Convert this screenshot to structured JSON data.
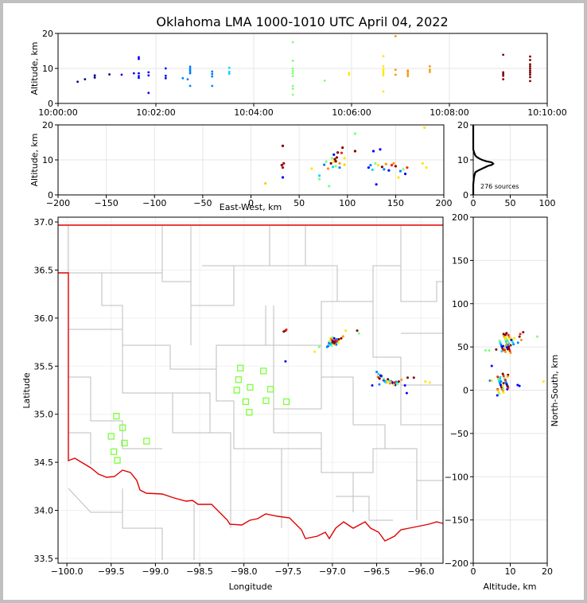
{
  "chart_data": {
    "title": "Oklahoma LMA 1000-1010 UTC April 04, 2022",
    "time_height": {
      "type": "scatter",
      "ylabel": "Altitude, km",
      "xlim_minutes": [
        0,
        10
      ],
      "ylim": [
        0,
        20
      ],
      "xticks": [
        "10:00:00",
        "10:02:00",
        "10:04:00",
        "10:06:00",
        "10:08:00",
        "10:10:00"
      ],
      "yticks": [
        "0",
        "10",
        "20"
      ],
      "color_by_time": [
        "#00007f",
        "#0000ff",
        "#0080ff",
        "#00d8ff",
        "#7dff7a",
        "#ffe600",
        "#ff9400",
        "#ff1d00",
        "#7f0000"
      ],
      "points": [
        [
          0.4,
          6.2
        ],
        [
          0.55,
          6.9
        ],
        [
          0.75,
          7.4
        ],
        [
          0.75,
          8.0
        ],
        [
          1.05,
          8.3
        ],
        [
          1.3,
          8.2
        ],
        [
          1.55,
          8.6
        ],
        [
          1.65,
          7.3
        ],
        [
          1.65,
          7.8
        ],
        [
          1.65,
          8.6
        ],
        [
          1.65,
          12.7
        ],
        [
          1.65,
          13.2
        ],
        [
          1.85,
          8.0
        ],
        [
          1.85,
          8.9
        ],
        [
          1.85,
          3.0
        ],
        [
          2.2,
          7.2
        ],
        [
          2.2,
          7.9
        ],
        [
          2.2,
          10.0
        ],
        [
          2.55,
          7.2
        ],
        [
          2.65,
          6.9
        ],
        [
          2.7,
          8.6
        ],
        [
          2.7,
          9.0
        ],
        [
          2.7,
          9.5
        ],
        [
          2.7,
          10.0
        ],
        [
          2.7,
          10.5
        ],
        [
          2.7,
          5.0
        ],
        [
          3.15,
          7.7
        ],
        [
          3.15,
          8.4
        ],
        [
          3.15,
          9.1
        ],
        [
          3.15,
          5.0
        ],
        [
          3.5,
          8.5
        ],
        [
          3.5,
          9.0
        ],
        [
          3.5,
          10.2
        ],
        [
          4.8,
          7.8
        ],
        [
          4.8,
          8.6
        ],
        [
          4.8,
          9.3
        ],
        [
          4.8,
          10.0
        ],
        [
          4.8,
          12.2
        ],
        [
          4.8,
          5.0
        ],
        [
          4.8,
          4.2
        ],
        [
          4.8,
          2.5
        ],
        [
          4.8,
          17.5
        ],
        [
          5.45,
          6.5
        ],
        [
          5.95,
          8.2
        ],
        [
          5.95,
          8.7
        ],
        [
          6.65,
          8.0
        ],
        [
          6.65,
          8.6
        ],
        [
          6.65,
          9.2
        ],
        [
          6.65,
          9.8
        ],
        [
          6.65,
          10.6
        ],
        [
          6.65,
          13.5
        ],
        [
          6.65,
          3.4
        ],
        [
          6.9,
          8.2
        ],
        [
          6.9,
          9.6
        ],
        [
          6.9,
          19.2
        ],
        [
          7.15,
          7.8
        ],
        [
          7.15,
          8.4
        ],
        [
          7.15,
          9.0
        ],
        [
          7.15,
          9.4
        ],
        [
          7.6,
          9.0
        ],
        [
          7.6,
          9.6
        ],
        [
          7.6,
          10.6
        ],
        [
          9.1,
          7.9
        ],
        [
          9.1,
          8.4
        ],
        [
          9.1,
          8.9
        ],
        [
          9.1,
          13.9
        ],
        [
          9.1,
          6.9
        ],
        [
          9.65,
          6.4
        ],
        [
          9.65,
          7.5
        ],
        [
          9.65,
          8.2
        ],
        [
          9.65,
          8.8
        ],
        [
          9.65,
          9.4
        ],
        [
          9.65,
          10.0
        ],
        [
          9.65,
          10.6
        ],
        [
          9.65,
          11.2
        ],
        [
          9.65,
          12.4
        ],
        [
          9.65,
          13.4
        ]
      ]
    },
    "ew_height": {
      "type": "scatter",
      "xlabel": "East-West, km",
      "ylabel": "Altitude, km",
      "xlim": [
        -200,
        200
      ],
      "ylim": [
        0,
        20
      ],
      "xticks": [
        "−200",
        "−150",
        "−100",
        "−50",
        "0",
        "50",
        "100",
        "150",
        "200"
      ],
      "yticks": [
        "0",
        "10",
        "20"
      ],
      "points": [
        [
          32,
          8.5,
          "#7f0000"
        ],
        [
          33,
          7.8,
          "#b00000"
        ],
        [
          33,
          14,
          "#7f0000"
        ],
        [
          34,
          9,
          "#b00000"
        ],
        [
          15,
          3.3,
          "#ffcc00"
        ],
        [
          33,
          5,
          "#0000ff"
        ],
        [
          63,
          7.5,
          "#ffe600"
        ],
        [
          71,
          4.5,
          "#7dff7a"
        ],
        [
          71,
          5.5,
          "#00d8ff"
        ],
        [
          76,
          8.6,
          "#0080ff"
        ],
        [
          78,
          9.5,
          "#7dff7a"
        ],
        [
          80,
          7.5,
          "#ff9400"
        ],
        [
          81,
          2.5,
          "#7dff7a"
        ],
        [
          83,
          9.0,
          "#7f0000"
        ],
        [
          84,
          10.5,
          "#7dff7a"
        ],
        [
          85,
          8.0,
          "#00d8ff"
        ],
        [
          86,
          9.5,
          "#ffe600"
        ],
        [
          86,
          11.5,
          "#0000ff"
        ],
        [
          87,
          10.2,
          "#7f0000"
        ],
        [
          88,
          9.6,
          "#7f0000"
        ],
        [
          88,
          8.2,
          "#7dff7a"
        ],
        [
          89,
          10.7,
          "#7f0000"
        ],
        [
          90,
          12.1,
          "#7f0000"
        ],
        [
          92,
          9.0,
          "#ff9400"
        ],
        [
          92,
          7.8,
          "#0080ff"
        ],
        [
          94,
          12,
          "#ff1d00"
        ],
        [
          95,
          13.5,
          "#7f0000"
        ],
        [
          97,
          10.5,
          "#ffe600"
        ],
        [
          97,
          8.6,
          "#ffcc00"
        ],
        [
          108,
          17.5,
          "#7dff7a"
        ],
        [
          108,
          12.5,
          "#7f0000"
        ],
        [
          122,
          7.8,
          "#0000ff"
        ],
        [
          124,
          8.5,
          "#0080ff"
        ],
        [
          126,
          7.2,
          "#00d8ff"
        ],
        [
          127,
          12.5,
          "#0000ff"
        ],
        [
          129,
          9.0,
          "#7dff7a"
        ],
        [
          130,
          3.0,
          "#0000ff"
        ],
        [
          132,
          8.5,
          "#ffe600"
        ],
        [
          134,
          13,
          "#0000ff"
        ],
        [
          136,
          8.0,
          "#7f0000"
        ],
        [
          138,
          7.3,
          "#0080ff"
        ],
        [
          140,
          8.8,
          "#ff9400"
        ],
        [
          143,
          7.0,
          "#0000ff"
        ],
        [
          146,
          8.5,
          "#ff1d00"
        ],
        [
          148,
          9.0,
          "#ff9400"
        ],
        [
          150,
          8.2,
          "#7f0000"
        ],
        [
          153,
          5.0,
          "#ffe600"
        ],
        [
          155,
          6.8,
          "#0080ff"
        ],
        [
          158,
          7.3,
          "#7dff7a"
        ],
        [
          160,
          6.0,
          "#0000ff"
        ],
        [
          162,
          7.8,
          "#ff1d00"
        ],
        [
          178,
          9.0,
          "#ffe600"
        ],
        [
          180,
          19.2,
          "#ffe600"
        ],
        [
          182,
          7.8,
          "#ffe600"
        ]
      ]
    },
    "histogram": {
      "type": "line",
      "xlim": [
        0,
        100
      ],
      "ylim": [
        0,
        20
      ],
      "xticks": [
        "0",
        "50",
        "100"
      ],
      "yticks": [
        "0",
        "10",
        "20"
      ],
      "annotation": "276 sources",
      "profile": [
        [
          0,
          0
        ],
        [
          0,
          3
        ],
        [
          1,
          5
        ],
        [
          2,
          6
        ],
        [
          3,
          6.5
        ],
        [
          7,
          7
        ],
        [
          12,
          7.5
        ],
        [
          16,
          7.9
        ],
        [
          20,
          8.3
        ],
        [
          25,
          8.6
        ],
        [
          27,
          8.9
        ],
        [
          25,
          9.3
        ],
        [
          18,
          9.6
        ],
        [
          12,
          10.0
        ],
        [
          8,
          10.4
        ],
        [
          5,
          10.8
        ],
        [
          3,
          11.2
        ],
        [
          2,
          11.6
        ],
        [
          1,
          12.2
        ],
        [
          0,
          13
        ],
        [
          0,
          20
        ]
      ]
    },
    "map": {
      "type": "scatter",
      "xlabel": "Longitude",
      "ylabel": "Latitude",
      "xlim": [
        -100.1,
        -95.75
      ],
      "ylim": [
        33.45,
        37.05
      ],
      "xticks": [
        "−100.0",
        "−99.5",
        "−99.0",
        "−98.5",
        "−98.0",
        "−97.5",
        "−97.0",
        "−96.5",
        "−96.0"
      ],
      "yticks": [
        "33.5",
        "34.0",
        "34.5",
        "35.0",
        "35.5",
        "36.0",
        "36.5",
        "37.0"
      ],
      "stations": [
        [
          -99.44,
          34.98
        ],
        [
          -99.37,
          34.86
        ],
        [
          -99.5,
          34.77
        ],
        [
          -99.35,
          34.7
        ],
        [
          -99.47,
          34.61
        ],
        [
          -99.43,
          34.52
        ],
        [
          -99.1,
          34.72
        ],
        [
          -98.04,
          35.48
        ],
        [
          -97.78,
          35.45
        ],
        [
          -98.06,
          35.36
        ],
        [
          -97.93,
          35.28
        ],
        [
          -98.08,
          35.25
        ],
        [
          -97.7,
          35.26
        ],
        [
          -97.98,
          35.13
        ],
        [
          -97.75,
          35.14
        ],
        [
          -97.52,
          35.13
        ],
        [
          -97.94,
          35.02
        ]
      ],
      "points": [
        [
          -97.53,
          35.87,
          "#7f0000"
        ],
        [
          -97.52,
          35.88,
          "#ff1d00"
        ],
        [
          -97.55,
          35.86,
          "#7f0000"
        ],
        [
          -97.53,
          35.55,
          "#0000ff"
        ],
        [
          -97.2,
          35.65,
          "#ffe600"
        ],
        [
          -97.15,
          35.7,
          "#7dff7a"
        ],
        [
          -97.06,
          35.7,
          "#0080ff"
        ],
        [
          -97.04,
          35.72,
          "#00d8ff"
        ],
        [
          -97.0,
          35.75,
          "#7f0000"
        ],
        [
          -96.98,
          35.74,
          "#7f0000"
        ],
        [
          -96.95,
          35.76,
          "#ff1d00"
        ],
        [
          -96.93,
          35.78,
          "#7f0000"
        ],
        [
          -96.9,
          35.79,
          "#7f0000"
        ],
        [
          -96.88,
          35.81,
          "#ff9400"
        ],
        [
          -96.85,
          35.87,
          "#ffe600"
        ],
        [
          -96.72,
          35.87,
          "#7f0000"
        ],
        [
          -96.7,
          35.84,
          "#7dff7a"
        ],
        [
          -97.0,
          35.8,
          "#7dff7a"
        ],
        [
          -96.98,
          35.79,
          "#0000ff"
        ],
        [
          -96.95,
          35.78,
          "#0080ff"
        ],
        [
          -96.5,
          35.44,
          "#0080ff"
        ],
        [
          -96.48,
          35.42,
          "#00d8ff"
        ],
        [
          -96.45,
          35.4,
          "#0000ff"
        ],
        [
          -96.42,
          35.37,
          "#7dff7a"
        ],
        [
          -96.38,
          35.33,
          "#ffe600"
        ],
        [
          -96.35,
          35.32,
          "#ff9400"
        ],
        [
          -96.3,
          35.33,
          "#ff1d00"
        ],
        [
          -96.25,
          35.34,
          "#7f0000"
        ],
        [
          -96.22,
          35.36,
          "#ff9400"
        ],
        [
          -96.18,
          35.3,
          "#0000ff"
        ],
        [
          -96.15,
          35.38,
          "#7f0000"
        ],
        [
          -96.16,
          35.22,
          "#0000ff"
        ],
        [
          -96.08,
          35.38,
          "#7f0000"
        ],
        [
          -95.95,
          35.34,
          "#ffe600"
        ],
        [
          -95.9,
          35.33,
          "#ffe600"
        ],
        [
          -96.55,
          35.3,
          "#0000ff"
        ],
        [
          -96.47,
          35.31,
          "#0080ff"
        ]
      ]
    },
    "ns_height": {
      "type": "scatter",
      "xlabel": "Altitude, km",
      "ylabel": "North-South, km",
      "xlim": [
        0,
        20
      ],
      "ylim": [
        -200,
        200
      ],
      "xticks": [
        "0",
        "10",
        "20"
      ],
      "yticks": [
        "−200",
        "−150",
        "−100",
        "−50",
        "0",
        "50",
        "100",
        "150",
        "200"
      ],
      "points": [
        [
          6.5,
          -6,
          "#0000ff"
        ],
        [
          4.5,
          11,
          "#0080ff"
        ],
        [
          5,
          11,
          "#ffe600"
        ],
        [
          5,
          28,
          "#0000ff"
        ],
        [
          4.3,
          46,
          "#7dff7a"
        ],
        [
          6.2,
          47,
          "#7f0000"
        ],
        [
          7.5,
          10,
          "#0080ff"
        ],
        [
          8.2,
          8,
          "#7f0000"
        ],
        [
          8.7,
          12,
          "#ff1d00"
        ],
        [
          8,
          5,
          "#ffe600"
        ],
        [
          9.3,
          16,
          "#ff9400"
        ],
        [
          7.3,
          15,
          "#00d8ff"
        ],
        [
          8.1,
          2,
          "#7dff7a"
        ],
        [
          7.7,
          45,
          "#00d8ff"
        ],
        [
          8.4,
          49,
          "#7dff7a"
        ],
        [
          8.9,
          52,
          "#ff9400"
        ],
        [
          9.6,
          50,
          "#7f0000"
        ],
        [
          10.1,
          52,
          "#7f0000"
        ],
        [
          9.3,
          55,
          "#ffe600"
        ],
        [
          10.3,
          58,
          "#0000ff"
        ],
        [
          8.2,
          65,
          "#7f0000"
        ],
        [
          8.7,
          64,
          "#7f0000"
        ],
        [
          9.0,
          66,
          "#7f0000"
        ],
        [
          11.1,
          60,
          "#ffe600"
        ],
        [
          12.1,
          55,
          "#0080ff"
        ],
        [
          12.5,
          62,
          "#7f0000"
        ],
        [
          12.7,
          65,
          "#ff1d00"
        ],
        [
          13.5,
          67,
          "#7f0000"
        ],
        [
          13.0,
          58,
          "#ff9400"
        ],
        [
          12.0,
          6,
          "#0000ff"
        ],
        [
          12.5,
          5,
          "#0000ff"
        ],
        [
          17.3,
          62,
          "#7dff7a"
        ],
        [
          19.0,
          10,
          "#ffe600"
        ],
        [
          3.3,
          46,
          "#7dff7a"
        ]
      ]
    }
  }
}
